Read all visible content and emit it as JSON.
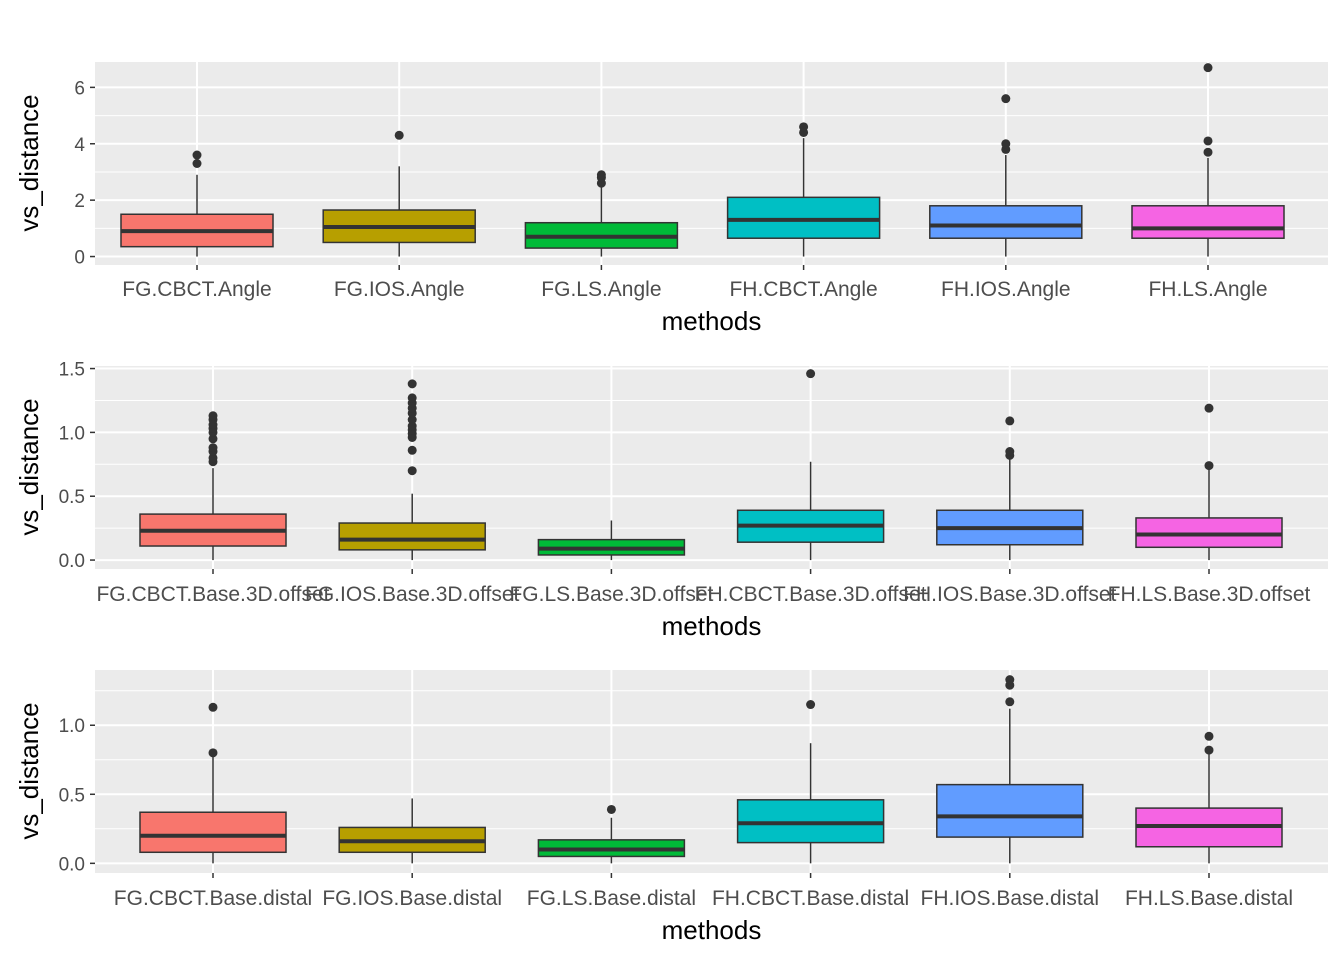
{
  "chart_data": [
    {
      "type": "boxplot",
      "xlabel": "methods",
      "ylabel": "vs_distance",
      "ylim": [
        -0.3,
        6.9
      ],
      "yticks": [
        0,
        2,
        4,
        6
      ],
      "grid": true,
      "categories": [
        "FG.CBCT.Angle",
        "FG.IOS.Angle",
        "FG.LS.Angle",
        "FH.CBCT.Angle",
        "FH.IOS.Angle",
        "FH.LS.Angle"
      ],
      "boxes": [
        {
          "category": "FG.CBCT.Angle",
          "min": 0.0,
          "q1": 0.35,
          "median": 0.9,
          "q3": 1.5,
          "max": 2.9,
          "outliers": [
            3.3,
            3.6
          ],
          "color": "#F8766D"
        },
        {
          "category": "FG.IOS.Angle",
          "min": 0.0,
          "q1": 0.5,
          "median": 1.05,
          "q3": 1.65,
          "max": 3.2,
          "outliers": [
            4.3
          ],
          "color": "#B79F00"
        },
        {
          "category": "FG.LS.Angle",
          "min": 0.0,
          "q1": 0.3,
          "median": 0.7,
          "q3": 1.2,
          "max": 2.5,
          "outliers": [
            2.6,
            2.8,
            2.9
          ],
          "color": "#00BA38"
        },
        {
          "category": "FH.CBCT.Angle",
          "min": 0.0,
          "q1": 0.65,
          "median": 1.3,
          "q3": 2.1,
          "max": 4.2,
          "outliers": [
            4.4,
            4.6
          ],
          "color": "#00BFC4"
        },
        {
          "category": "FH.IOS.Angle",
          "min": 0.0,
          "q1": 0.65,
          "median": 1.1,
          "q3": 1.8,
          "max": 3.6,
          "outliers": [
            3.8,
            4.0,
            5.6
          ],
          "color": "#619CFF"
        },
        {
          "category": "FH.LS.Angle",
          "min": 0.0,
          "q1": 0.65,
          "median": 1.0,
          "q3": 1.8,
          "max": 3.5,
          "outliers": [
            3.7,
            4.1,
            6.7
          ],
          "color": "#F564E3"
        }
      ]
    },
    {
      "type": "boxplot",
      "xlabel": "methods",
      "ylabel": "vs_distance",
      "ylim": [
        -0.07,
        1.52
      ],
      "yticks": [
        0.0,
        0.5,
        1.0,
        1.5
      ],
      "ytick_labels": [
        "0.0",
        "0.5",
        "1.0",
        "1.5"
      ],
      "grid": true,
      "categories": [
        "FG.CBCT.Base.3D.offset",
        "FG.IOS.Base.3D.offset",
        "FG.LS.Base.3D.offset",
        "FH.CBCT.Base.3D.offset",
        "FH.IOS.Base.3D.offset",
        "FH.LS.Base.3D.offset"
      ],
      "boxes": [
        {
          "category": "FG.CBCT.Base.3D.offset",
          "min": 0.0,
          "q1": 0.11,
          "median": 0.23,
          "q3": 0.36,
          "max": 0.72,
          "outliers": [
            0.77,
            0.8,
            0.85,
            0.88,
            0.95,
            1.0,
            1.03,
            1.06,
            1.1,
            1.13
          ],
          "color": "#F8766D"
        },
        {
          "category": "FG.IOS.Base.3D.offset",
          "min": 0.0,
          "q1": 0.08,
          "median": 0.16,
          "q3": 0.29,
          "max": 0.52,
          "outliers": [
            0.7,
            0.86,
            0.96,
            0.99,
            1.02,
            1.05,
            1.1,
            1.15,
            1.19,
            1.23,
            1.27,
            1.38
          ],
          "color": "#B79F00"
        },
        {
          "category": "FG.LS.Base.3D.offset",
          "min": 0.0,
          "q1": 0.04,
          "median": 0.09,
          "q3": 0.16,
          "max": 0.31,
          "outliers": [],
          "color": "#00BA38"
        },
        {
          "category": "FH.CBCT.Base.3D.offset",
          "min": 0.0,
          "q1": 0.14,
          "median": 0.27,
          "q3": 0.39,
          "max": 0.77,
          "outliers": [
            1.46
          ],
          "color": "#00BFC4"
        },
        {
          "category": "FH.IOS.Base.3D.offset",
          "min": 0.0,
          "q1": 0.12,
          "median": 0.25,
          "q3": 0.39,
          "max": 0.8,
          "outliers": [
            0.82,
            0.85,
            1.09
          ],
          "color": "#619CFF"
        },
        {
          "category": "FH.LS.Base.3D.offset",
          "min": 0.0,
          "q1": 0.1,
          "median": 0.2,
          "q3": 0.33,
          "max": 0.72,
          "outliers": [
            0.74,
            1.19
          ],
          "color": "#F564E3"
        }
      ]
    },
    {
      "type": "boxplot",
      "xlabel": "methods",
      "ylabel": "vs_distance",
      "ylim": [
        -0.07,
        1.4
      ],
      "yticks": [
        0.0,
        0.5,
        1.0
      ],
      "ytick_labels": [
        "0.0",
        "0.5",
        "1.0"
      ],
      "grid": true,
      "categories": [
        "FG.CBCT.Base.distal",
        "FG.IOS.Base.distal",
        "FG.LS.Base.distal",
        "FH.CBCT.Base.distal",
        "FH.IOS.Base.distal",
        "FH.LS.Base.distal"
      ],
      "boxes": [
        {
          "category": "FG.CBCT.Base.distal",
          "min": 0.0,
          "q1": 0.08,
          "median": 0.2,
          "q3": 0.37,
          "max": 0.78,
          "outliers": [
            0.8,
            1.13
          ],
          "color": "#F8766D"
        },
        {
          "category": "FG.IOS.Base.distal",
          "min": 0.0,
          "q1": 0.08,
          "median": 0.16,
          "q3": 0.26,
          "max": 0.47,
          "outliers": [],
          "color": "#B79F00"
        },
        {
          "category": "FG.LS.Base.distal",
          "min": 0.0,
          "q1": 0.05,
          "median": 0.1,
          "q3": 0.17,
          "max": 0.33,
          "outliers": [
            0.39
          ],
          "color": "#00BA38"
        },
        {
          "category": "FH.CBCT.Base.distal",
          "min": 0.0,
          "q1": 0.15,
          "median": 0.29,
          "q3": 0.46,
          "max": 0.87,
          "outliers": [
            1.15
          ],
          "color": "#00BFC4"
        },
        {
          "category": "FH.IOS.Base.distal",
          "min": 0.0,
          "q1": 0.19,
          "median": 0.34,
          "q3": 0.57,
          "max": 1.12,
          "outliers": [
            1.17,
            1.29,
            1.33
          ],
          "color": "#619CFF"
        },
        {
          "category": "FH.LS.Base.distal",
          "min": 0.0,
          "q1": 0.12,
          "median": 0.27,
          "q3": 0.4,
          "max": 0.79,
          "outliers": [
            0.82,
            0.92
          ],
          "color": "#F564E3"
        }
      ]
    }
  ]
}
